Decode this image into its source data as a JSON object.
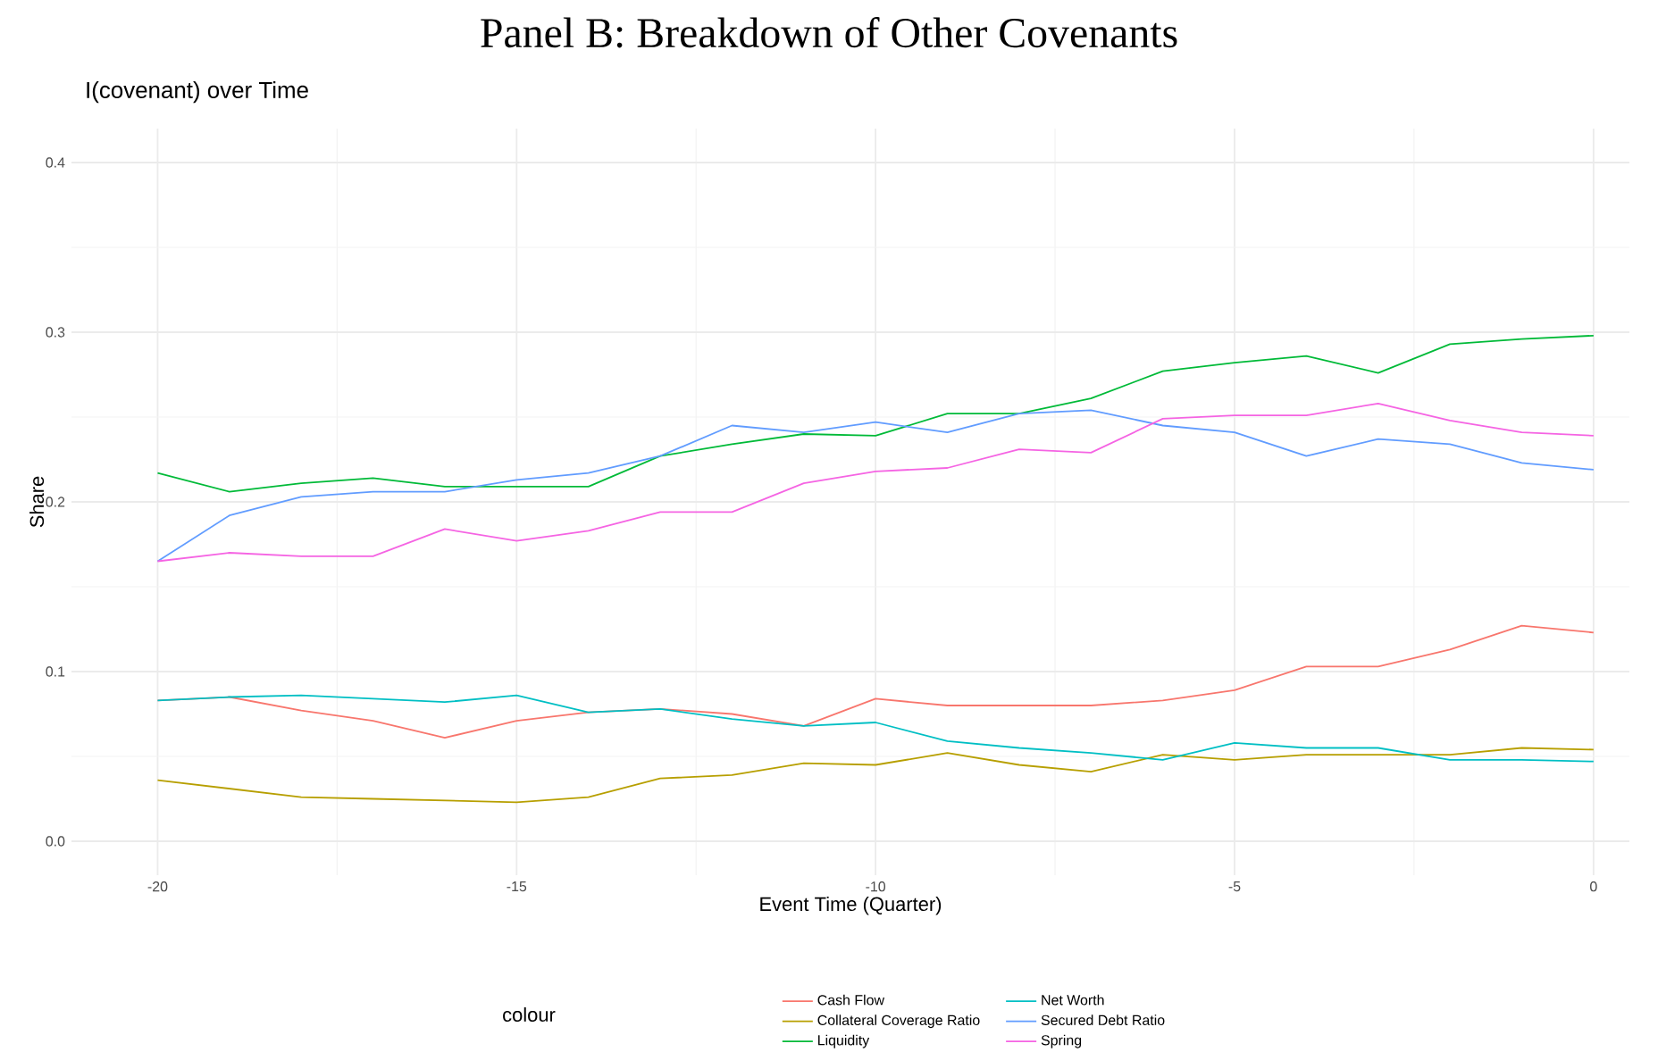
{
  "chart_data": {
    "type": "line",
    "title": "Panel B: Breakdown of Other Covenants",
    "subtitle": "I(covenant) over Time",
    "xlabel": "Event Time (Quarter)",
    "ylabel": "Share",
    "legend_title": "colour",
    "x": [
      -20,
      -19,
      -18,
      -17,
      -16,
      -15,
      -14,
      -13,
      -12,
      -11,
      -10,
      -9,
      -8,
      -7,
      -6,
      -5,
      -4,
      -3,
      -2,
      -1,
      0
    ],
    "series": [
      {
        "name": "Cash Flow",
        "color": "#f8766d",
        "values": [
          0.083,
          0.085,
          0.077,
          0.071,
          0.061,
          0.071,
          0.076,
          0.078,
          0.075,
          0.068,
          0.084,
          0.08,
          0.08,
          0.08,
          0.083,
          0.089,
          0.103,
          0.103,
          0.113,
          0.127,
          0.123
        ]
      },
      {
        "name": "Collateral Coverage Ratio",
        "color": "#b79f00",
        "values": [
          0.036,
          0.031,
          0.026,
          0.025,
          0.024,
          0.023,
          0.026,
          0.037,
          0.039,
          0.046,
          0.045,
          0.052,
          0.045,
          0.041,
          0.051,
          0.048,
          0.051,
          0.051,
          0.051,
          0.055,
          0.054
        ]
      },
      {
        "name": "Liquidity",
        "color": "#00ba38",
        "values": [
          0.217,
          0.206,
          0.211,
          0.214,
          0.209,
          0.209,
          0.209,
          0.227,
          0.234,
          0.24,
          0.239,
          0.252,
          0.252,
          0.261,
          0.277,
          0.282,
          0.286,
          0.276,
          0.293,
          0.296,
          0.298
        ]
      },
      {
        "name": "Net Worth",
        "color": "#00bfc4",
        "values": [
          0.083,
          0.085,
          0.086,
          0.084,
          0.082,
          0.086,
          0.076,
          0.078,
          0.072,
          0.068,
          0.07,
          0.059,
          0.055,
          0.052,
          0.048,
          0.058,
          0.055,
          0.055,
          0.048,
          0.048,
          0.047
        ]
      },
      {
        "name": "Secured Debt Ratio",
        "color": "#619cff",
        "values": [
          0.165,
          0.192,
          0.203,
          0.206,
          0.206,
          0.213,
          0.217,
          0.227,
          0.245,
          0.241,
          0.247,
          0.241,
          0.252,
          0.254,
          0.245,
          0.241,
          0.227,
          0.237,
          0.234,
          0.223,
          0.219
        ]
      },
      {
        "name": "Spring",
        "color": "#f564e3",
        "values": [
          0.165,
          0.17,
          0.168,
          0.168,
          0.184,
          0.177,
          0.183,
          0.194,
          0.194,
          0.211,
          0.218,
          0.22,
          0.231,
          0.229,
          0.249,
          0.251,
          0.251,
          0.258,
          0.248,
          0.241,
          0.239
        ]
      }
    ],
    "xlim": [
      -21.2,
      0.5
    ],
    "ylim": [
      -0.02,
      0.42
    ],
    "xticks": [
      -20,
      -15,
      -10,
      -5,
      0
    ],
    "yticks": [
      {
        "value": 0,
        "label": "0.0"
      },
      {
        "value": 0.1,
        "label": "0.1"
      },
      {
        "value": 0.2,
        "label": "0.2"
      },
      {
        "value": 0.3,
        "label": "0.3"
      },
      {
        "value": 0.4,
        "label": "0.4"
      }
    ],
    "grid": true,
    "legend": "bottom",
    "marker": "none",
    "line_style": "solid"
  }
}
